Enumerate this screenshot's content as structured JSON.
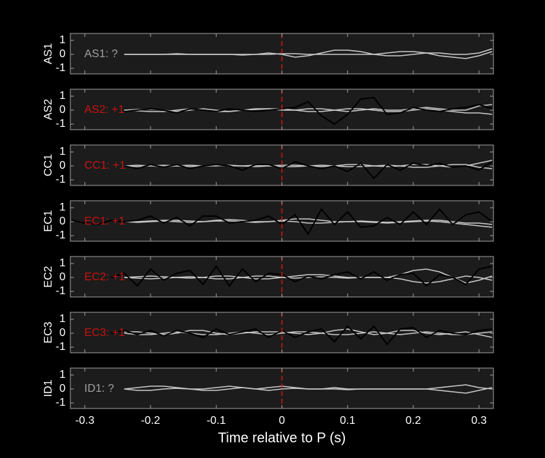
{
  "chart_data": [
    {
      "type": "line",
      "ylabel": "AS1",
      "annotation": "AS1: ?",
      "annotation_color": "#a0a0a0",
      "vline": 0,
      "vline_color": "#e01010",
      "xlim": [
        -0.322,
        0.322
      ],
      "ylim": [
        -1.4,
        1.5
      ],
      "yticks": [
        -1,
        0,
        1
      ],
      "xticks": [
        -0.3,
        -0.2,
        -0.1,
        0,
        0.1,
        0.2,
        0.3
      ],
      "x": [
        -0.32,
        -0.3,
        -0.28,
        -0.26,
        -0.24,
        -0.22,
        -0.2,
        -0.18,
        -0.16,
        -0.14,
        -0.12,
        -0.1,
        -0.08,
        -0.06,
        -0.04,
        -0.02,
        0,
        0.02,
        0.04,
        0.06,
        0.08,
        0.1,
        0.12,
        0.14,
        0.16,
        0.18,
        0.2,
        0.22,
        0.24,
        0.26,
        0.28,
        0.3,
        0.32
      ],
      "series": [
        {
          "color": "#c8c8c8",
          "values": [
            null,
            null,
            null,
            null,
            0,
            0,
            0,
            0,
            0.05,
            0,
            0,
            0,
            0,
            -0.05,
            0,
            0.1,
            0,
            -0.2,
            -0.1,
            0.1,
            0.3,
            0.3,
            0.2,
            0,
            -0.1,
            -0.1,
            0,
            0.1,
            0.1,
            0,
            0,
            0.1,
            0.4
          ]
        },
        {
          "color": "#c8c8c8",
          "values": [
            null,
            null,
            null,
            null,
            0,
            0,
            0,
            0,
            0,
            0,
            0,
            0,
            0,
            0,
            0,
            0,
            0.05,
            0.05,
            0,
            0,
            0,
            0,
            0,
            0,
            0.1,
            0.2,
            0.2,
            0.1,
            -0.1,
            -0.2,
            -0.3,
            -0.1,
            0.2
          ]
        }
      ]
    },
    {
      "type": "line",
      "ylabel": "AS2",
      "annotation": "AS2: +1",
      "annotation_color": "#cc1111",
      "vline": 0,
      "vline_color": "#e01010",
      "xlim": [
        -0.322,
        0.322
      ],
      "ylim": [
        -1.4,
        1.5
      ],
      "yticks": [
        -1,
        0,
        1
      ],
      "xticks": [
        -0.3,
        -0.2,
        -0.1,
        0,
        0.1,
        0.2,
        0.3
      ],
      "x": [
        -0.32,
        -0.3,
        -0.28,
        -0.26,
        -0.24,
        -0.22,
        -0.2,
        -0.18,
        -0.16,
        -0.14,
        -0.12,
        -0.1,
        -0.08,
        -0.06,
        -0.04,
        -0.02,
        0,
        0.02,
        0.04,
        0.06,
        0.08,
        0.1,
        0.12,
        0.14,
        0.16,
        0.18,
        0.2,
        0.22,
        0.24,
        0.26,
        0.28,
        0.3,
        0.32
      ],
      "series": [
        {
          "color": "#c8c8c8",
          "values": [
            null,
            null,
            null,
            null,
            0,
            0.05,
            0.05,
            0,
            -0.1,
            0,
            0.1,
            0,
            -0.1,
            0,
            0.1,
            0.1,
            0,
            0,
            0.1,
            0.1,
            0,
            -0.1,
            0,
            0.1,
            0,
            0,
            0.1,
            0.2,
            0.1,
            0,
            0,
            0.3,
            0.4
          ]
        },
        {
          "color": "#c8c8c8",
          "values": [
            null,
            null,
            null,
            null,
            0,
            -0.05,
            -0.1,
            -0.1,
            0,
            0.1,
            0,
            -0.1,
            -0.1,
            0,
            0.05,
            0.1,
            0.1,
            0,
            -0.1,
            -0.1,
            0,
            0.1,
            0.1,
            0,
            -0.1,
            -0.1,
            0,
            0.1,
            0,
            -0.1,
            -0.2,
            -0.2,
            -0.3
          ]
        },
        {
          "color": "#000000",
          "values": [
            null,
            null,
            null,
            null,
            -0.1,
            0,
            0.1,
            0,
            -0.2,
            0.1,
            0,
            -0.1,
            0.1,
            0,
            -0.1,
            0,
            0.1,
            0.2,
            0.6,
            -0.4,
            -1,
            -0.3,
            0.8,
            0.9,
            -0.3,
            -0.2,
            0.2,
            0,
            -0.1,
            0.1,
            0.2,
            0.4,
            0.1
          ]
        }
      ]
    },
    {
      "type": "line",
      "ylabel": "CC1",
      "annotation": "CC1: +1",
      "annotation_color": "#cc1111",
      "vline": 0,
      "vline_color": "#e01010",
      "xlim": [
        -0.322,
        0.322
      ],
      "ylim": [
        -1.4,
        1.5
      ],
      "yticks": [
        -1,
        0,
        1
      ],
      "xticks": [
        -0.3,
        -0.2,
        -0.1,
        0,
        0.1,
        0.2,
        0.3
      ],
      "x": [
        -0.32,
        -0.3,
        -0.28,
        -0.26,
        -0.24,
        -0.22,
        -0.2,
        -0.18,
        -0.16,
        -0.14,
        -0.12,
        -0.1,
        -0.08,
        -0.06,
        -0.04,
        -0.02,
        0,
        0.02,
        0.04,
        0.06,
        0.08,
        0.1,
        0.12,
        0.14,
        0.16,
        0.18,
        0.2,
        0.22,
        0.24,
        0.26,
        0.28,
        0.3,
        0.32
      ],
      "series": [
        {
          "color": "#c8c8c8",
          "values": [
            null,
            null,
            null,
            null,
            0,
            0.05,
            0,
            -0.05,
            0,
            0.05,
            0,
            0,
            0.05,
            0,
            -0.05,
            0,
            0.05,
            0.05,
            0,
            -0.05,
            0,
            0.1,
            0.1,
            0,
            -0.05,
            0,
            0.1,
            0.1,
            0,
            -0.1,
            0,
            0.2,
            0.4
          ]
        },
        {
          "color": "#c8c8c8",
          "values": [
            null,
            null,
            null,
            null,
            0,
            -0.05,
            0,
            0.05,
            0,
            -0.05,
            0,
            0.05,
            0,
            0,
            0.05,
            0,
            -0.05,
            -0.05,
            0,
            0.05,
            0,
            -0.05,
            -0.05,
            0,
            0.05,
            0,
            -0.1,
            -0.1,
            0,
            0.1,
            0.1,
            -0.1,
            -0.2
          ]
        },
        {
          "color": "#000000",
          "values": [
            null,
            null,
            null,
            null,
            0,
            -0.2,
            0.1,
            -0.1,
            0.1,
            -0.2,
            0,
            0.1,
            0,
            -0.3,
            0.1,
            0.1,
            -0.2,
            0.3,
            0,
            -0.2,
            0,
            -0.4,
            0.2,
            -0.9,
            0.1,
            -0.3,
            0.2,
            0,
            0.2,
            -0.1,
            0,
            -0.3,
            0.3
          ]
        }
      ]
    },
    {
      "type": "line",
      "ylabel": "EC1",
      "annotation": "EC1: +1",
      "annotation_color": "#cc1111",
      "vline": 0,
      "vline_color": "#e01010",
      "xlim": [
        -0.322,
        0.322
      ],
      "ylim": [
        -1.4,
        1.5
      ],
      "yticks": [
        -1,
        0,
        1
      ],
      "xticks": [
        -0.3,
        -0.2,
        -0.1,
        0,
        0.1,
        0.2,
        0.3
      ],
      "x": [
        -0.32,
        -0.3,
        -0.28,
        -0.26,
        -0.24,
        -0.22,
        -0.2,
        -0.18,
        -0.16,
        -0.14,
        -0.12,
        -0.1,
        -0.08,
        -0.06,
        -0.04,
        -0.02,
        0,
        0.02,
        0.04,
        0.06,
        0.08,
        0.1,
        0.12,
        0.14,
        0.16,
        0.18,
        0.2,
        0.22,
        0.24,
        0.26,
        0.28,
        0.3,
        0.32
      ],
      "series": [
        {
          "color": "#c8c8c8",
          "values": [
            null,
            null,
            null,
            null,
            0,
            0,
            0.05,
            0.1,
            0.1,
            0.05,
            0,
            0.1,
            0.15,
            0.1,
            0,
            0,
            0.1,
            0.2,
            0.2,
            0.1,
            0,
            0,
            0.05,
            0,
            -0.05,
            0,
            0.05,
            0.1,
            0.1,
            0,
            -0.1,
            -0.1,
            -0.2
          ]
        },
        {
          "color": "#c8c8c8",
          "values": [
            null,
            null,
            null,
            null,
            0,
            -0.05,
            0,
            0.05,
            0,
            -0.05,
            0,
            0.05,
            0.05,
            0,
            -0.05,
            0,
            0.05,
            0,
            -0.1,
            -0.1,
            -0.05,
            0,
            0,
            -0.05,
            -0.1,
            -0.05,
            0,
            0.05,
            0,
            -0.1,
            -0.2,
            -0.3,
            -0.4
          ]
        },
        {
          "color": "#000000",
          "values": [
            0.1,
            -0.1,
            -0.2,
            0.1,
            0,
            0.1,
            0.4,
            -0.1,
            0.3,
            -0.3,
            0.4,
            0.4,
            -0.1,
            0,
            0.1,
            0.4,
            -0.2,
            0.5,
            -0.9,
            0.9,
            -0.2,
            0.7,
            -0.4,
            -0.3,
            0.3,
            -0.2,
            0.7,
            -0.2,
            0.9,
            -0.2,
            0.5,
            0.7,
            0
          ]
        }
      ]
    },
    {
      "type": "line",
      "ylabel": "EC2",
      "annotation": "EC2: +1",
      "annotation_color": "#cc1111",
      "vline": 0,
      "vline_color": "#e01010",
      "xlim": [
        -0.322,
        0.322
      ],
      "ylim": [
        -1.4,
        1.5
      ],
      "yticks": [
        -1,
        0,
        1
      ],
      "xticks": [
        -0.3,
        -0.2,
        -0.1,
        0,
        0.1,
        0.2,
        0.3
      ],
      "x": [
        -0.32,
        -0.3,
        -0.28,
        -0.26,
        -0.24,
        -0.22,
        -0.2,
        -0.18,
        -0.16,
        -0.14,
        -0.12,
        -0.1,
        -0.08,
        -0.06,
        -0.04,
        -0.02,
        0,
        0.02,
        0.04,
        0.06,
        0.08,
        0.1,
        0.12,
        0.14,
        0.16,
        0.18,
        0.2,
        0.22,
        0.24,
        0.26,
        0.28,
        0.3,
        0.32
      ],
      "series": [
        {
          "color": "#c8c8c8",
          "values": [
            null,
            null,
            null,
            null,
            0,
            0.05,
            0.1,
            0.05,
            0,
            -0.05,
            0,
            0.1,
            0.1,
            0,
            -0.1,
            -0.1,
            0,
            0.1,
            0.2,
            0.2,
            0.1,
            0,
            0,
            0,
            0,
            0.2,
            0.5,
            0.6,
            0.4,
            0,
            -0.4,
            -0.2,
            0.1
          ]
        },
        {
          "color": "#c8c8c8",
          "values": [
            null,
            null,
            null,
            null,
            0,
            -0.05,
            -0.1,
            -0.05,
            0,
            0.05,
            0,
            -0.1,
            -0.1,
            0,
            0.1,
            0.1,
            0,
            -0.05,
            0,
            0.05,
            0,
            -0.05,
            0,
            0,
            0,
            -0.1,
            -0.3,
            -0.4,
            -0.3,
            -0.1,
            0.1,
            0,
            -0.2
          ]
        },
        {
          "color": "#000000",
          "values": [
            null,
            null,
            null,
            0,
            0.3,
            -0.6,
            0.6,
            -0.2,
            0.3,
            0.5,
            -0.5,
            0.8,
            -0.6,
            0.6,
            -0.3,
            0.3,
            0.2,
            -0.3,
            0.1,
            -0.1,
            0.2,
            0.4,
            -0.1,
            0.4,
            -0.2,
            0.2,
            0.3,
            -0.6,
            0.2,
            0,
            -0.5,
            0.6,
            0.8
          ]
        }
      ]
    },
    {
      "type": "line",
      "ylabel": "EC3",
      "annotation": "EC3: +1",
      "annotation_color": "#cc1111",
      "vline": 0,
      "vline_color": "#e01010",
      "xlim": [
        -0.322,
        0.322
      ],
      "ylim": [
        -1.4,
        1.5
      ],
      "yticks": [
        -1,
        0,
        1
      ],
      "xticks": [
        -0.3,
        -0.2,
        -0.1,
        0,
        0.1,
        0.2,
        0.3
      ],
      "x": [
        -0.32,
        -0.3,
        -0.28,
        -0.26,
        -0.24,
        -0.22,
        -0.2,
        -0.18,
        -0.16,
        -0.14,
        -0.12,
        -0.1,
        -0.08,
        -0.06,
        -0.04,
        -0.02,
        0,
        0.02,
        0.04,
        0.06,
        0.08,
        0.1,
        0.12,
        0.14,
        0.16,
        0.18,
        0.2,
        0.22,
        0.24,
        0.26,
        0.28,
        0.3,
        0.32
      ],
      "series": [
        {
          "color": "#c8c8c8",
          "values": [
            null,
            null,
            null,
            null,
            0.1,
            0.1,
            0,
            -0.1,
            0,
            0.2,
            0.2,
            0,
            -0.1,
            0,
            0.1,
            0.1,
            0.1,
            0,
            -0.1,
            0,
            0.2,
            0.3,
            0.1,
            -0.1,
            0,
            0.2,
            0.2,
            0,
            -0.1,
            0,
            0.1,
            -0.1,
            -0.3
          ]
        },
        {
          "color": "#c8c8c8",
          "values": [
            null,
            null,
            null,
            null,
            0,
            -0.1,
            -0.1,
            0,
            0.1,
            0,
            -0.1,
            -0.1,
            0,
            0.1,
            0,
            -0.1,
            0,
            0.1,
            0.1,
            0,
            -0.1,
            -0.1,
            0,
            0.1,
            0,
            -0.1,
            0,
            0.1,
            0,
            -0.1,
            -0.1,
            0,
            0.1
          ]
        },
        {
          "color": "#000000",
          "values": [
            null,
            null,
            null,
            0,
            0.2,
            -0.1,
            0.2,
            -0.2,
            0.2,
            0,
            -0.3,
            0.3,
            -0.1,
            0.1,
            0.3,
            -0.3,
            0.2,
            -0.3,
            0.1,
            0.3,
            -0.6,
            0.5,
            -0.4,
            0.5,
            -0.8,
            0.3,
            0.4,
            -0.3,
            0.2,
            0,
            -0.1,
            0.2,
            0.3
          ]
        }
      ]
    },
    {
      "type": "line",
      "ylabel": "ID1",
      "annotation": "ID1: ?",
      "annotation_color": "#a0a0a0",
      "vline": 0,
      "vline_color": "#e01010",
      "xlabel": "Time relative to P (s)",
      "xlim": [
        -0.322,
        0.322
      ],
      "ylim": [
        -1.4,
        1.5
      ],
      "yticks": [
        -1,
        0,
        1
      ],
      "xticks": [
        -0.3,
        -0.2,
        -0.1,
        0,
        0.1,
        0.2,
        0.3
      ],
      "x": [
        -0.32,
        -0.3,
        -0.28,
        -0.26,
        -0.24,
        -0.22,
        -0.2,
        -0.18,
        -0.16,
        -0.14,
        -0.12,
        -0.1,
        -0.08,
        -0.06,
        -0.04,
        -0.02,
        0,
        0.02,
        0.04,
        0.06,
        0.08,
        0.1,
        0.12,
        0.14,
        0.16,
        0.18,
        0.2,
        0.22,
        0.24,
        0.26,
        0.28,
        0.3,
        0.32
      ],
      "series": [
        {
          "color": "#c8c8c8",
          "values": [
            null,
            null,
            null,
            null,
            0,
            0.1,
            0.2,
            0.2,
            0.1,
            0,
            0,
            0.1,
            0.2,
            0.1,
            0,
            0.1,
            0.2,
            0.1,
            0,
            0,
            0.1,
            0,
            0,
            0,
            0,
            0,
            0,
            0,
            0.1,
            0.2,
            0.3,
            0.1,
            0
          ]
        },
        {
          "color": "#c8c8c8",
          "values": [
            null,
            null,
            null,
            null,
            0,
            -0.1,
            -0.1,
            0,
            0.05,
            0,
            -0.1,
            -0.1,
            0,
            0.1,
            0,
            -0.1,
            0,
            0.05,
            0,
            0,
            0,
            -0.05,
            0,
            0,
            0,
            0,
            0,
            0,
            -0.1,
            -0.2,
            -0.3,
            -0.1,
            0.1
          ]
        }
      ]
    }
  ]
}
